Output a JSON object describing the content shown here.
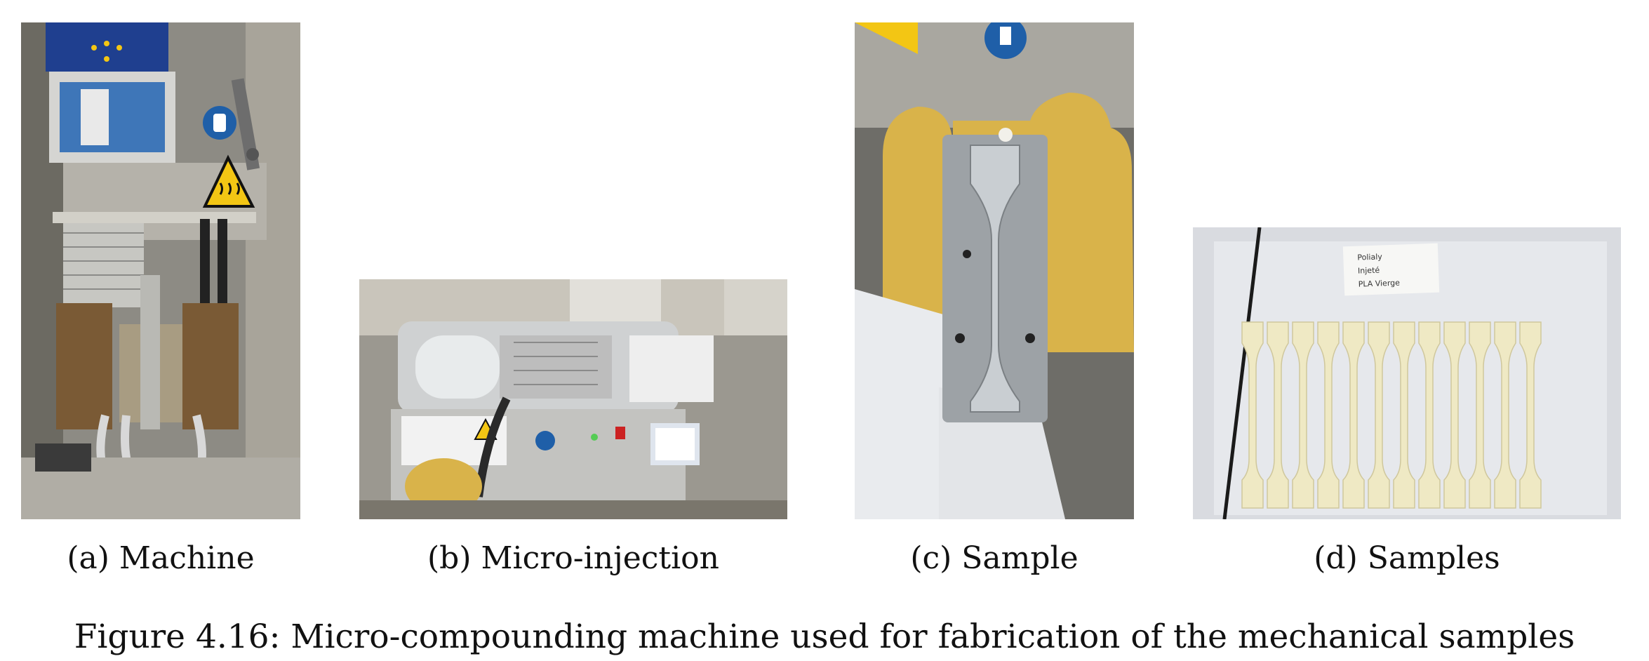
{
  "figure": {
    "caption": "Figure 4.16: Micro-compounding machine used for fabrication of the mechanical samples"
  },
  "panels": [
    {
      "id": "a",
      "caption": "(a) Machine",
      "depicts": "micro-compounding-machine-photo"
    },
    {
      "id": "b",
      "caption": "(b) Micro-injection",
      "depicts": "micro-injection-machine-photo"
    },
    {
      "id": "c",
      "caption": "(c) Sample",
      "depicts": "gloved-hand-holding-mold-photo"
    },
    {
      "id": "d",
      "caption": "(d) Samples",
      "depicts": "dogbone-samples-photo",
      "note_lines": [
        "Polialy",
        "Injeté",
        "PLA Vierge"
      ],
      "sample_count": 12
    }
  ],
  "colors": {
    "metal": "#9a9a98",
    "dark": "#2b2b2b",
    "glove": "#d9b34a",
    "warning": "#f3c614",
    "eu_blue": "#1f3f8f",
    "sample": "#efe9c4"
  }
}
